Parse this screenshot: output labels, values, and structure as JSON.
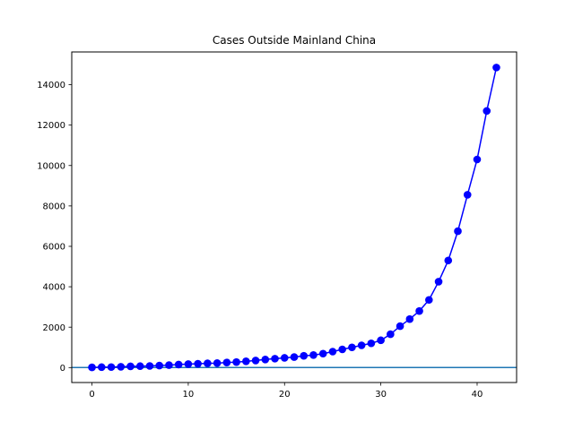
{
  "chart_data": {
    "type": "line",
    "title": "Cases Outside Mainland China",
    "xlabel": "",
    "ylabel": "",
    "xlim": [
      -2.1,
      44.1
    ],
    "ylim": [
      -740,
      15620
    ],
    "x_ticks": [
      0,
      10,
      20,
      30,
      40
    ],
    "y_ticks": [
      0,
      2000,
      4000,
      6000,
      8000,
      10000,
      12000,
      14000
    ],
    "grid": false,
    "legend": "none",
    "series": [
      {
        "color": "#0000ff",
        "marker": "circle",
        "x": [
          0,
          1,
          2,
          3,
          4,
          5,
          6,
          7,
          8,
          9,
          10,
          11,
          12,
          13,
          14,
          15,
          16,
          17,
          18,
          19,
          20,
          21,
          22,
          23,
          24,
          25,
          26,
          27,
          28,
          29,
          30,
          31,
          32,
          33,
          34,
          35,
          36,
          37,
          38,
          39,
          40,
          41,
          42
        ],
        "y": [
          10,
          20,
          25,
          40,
          60,
          70,
          80,
          100,
          120,
          150,
          170,
          190,
          210,
          220,
          250,
          270,
          310,
          350,
          400,
          440,
          480,
          520,
          580,
          620,
          690,
          790,
          900,
          1000,
          1100,
          1200,
          1350,
          1650,
          2050,
          2400,
          2800,
          3350,
          4250,
          5300,
          6750,
          8550,
          10300,
          12700,
          14850
        ]
      }
    ],
    "reference_lines": [
      {
        "orientation": "horizontal",
        "y": 0,
        "color": "#1f77b4"
      }
    ]
  }
}
